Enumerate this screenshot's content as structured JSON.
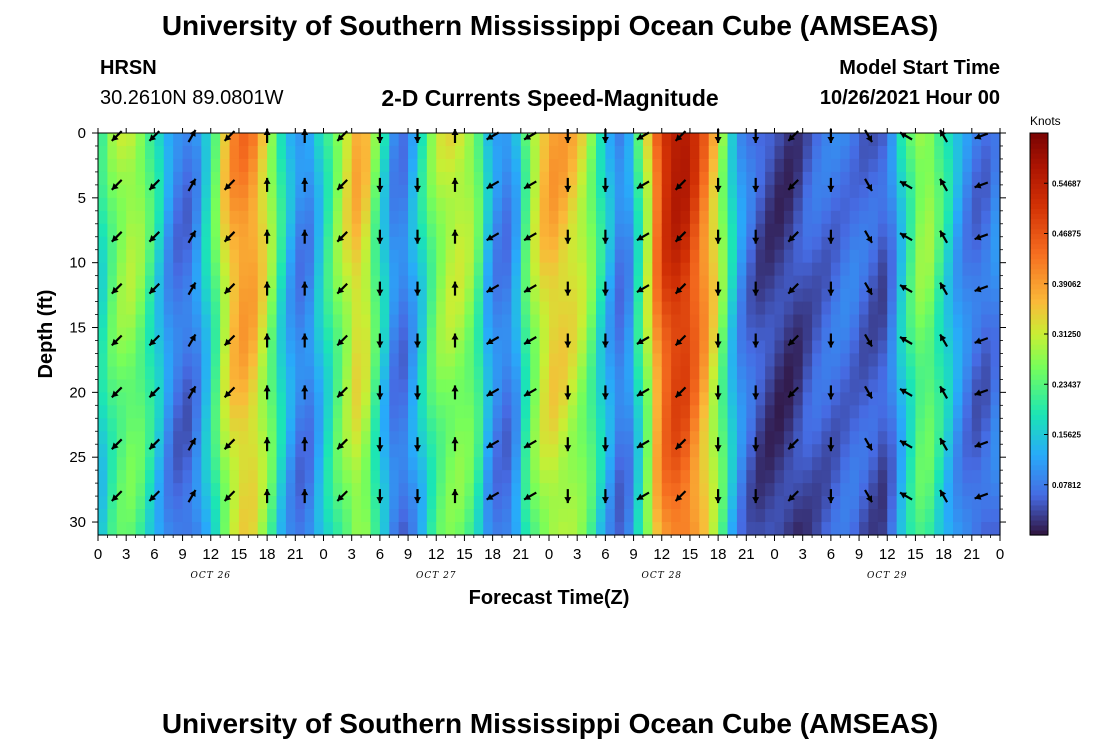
{
  "page": {
    "title_top": "University of Southern Mississippi Ocean Cube (AMSEAS)",
    "title_bottom": "University of Southern Mississippi Ocean Cube (AMSEAS)",
    "station": "HRSN",
    "coords": "30.2610N  89.0801W",
    "plot_title": "2-D Currents Speed-Magnitude",
    "model_start_label": "Model Start Time",
    "model_start_value": "10/26/2021 Hour 00"
  },
  "chart_data": {
    "type": "heatmap",
    "title": "2-D Currents Speed-Magnitude",
    "xlabel": "Forecast Time(Z)",
    "ylabel": "Depth (ft)",
    "x_tick_labels": [
      "0",
      "3",
      "6",
      "9",
      "12",
      "15",
      "18",
      "21",
      "0",
      "3",
      "6",
      "9",
      "12",
      "15",
      "18",
      "21",
      "0",
      "3",
      "6",
      "9",
      "12",
      "15",
      "18",
      "21",
      "0",
      "3",
      "6",
      "9",
      "12",
      "15",
      "18",
      "21",
      "0"
    ],
    "x_range_hours": [
      0,
      96
    ],
    "date_labels": [
      {
        "label": "OCT 26",
        "hour": 12
      },
      {
        "label": "OCT 27",
        "hour": 36
      },
      {
        "label": "OCT 28",
        "hour": 60
      },
      {
        "label": "OCT 29",
        "hour": 84
      }
    ],
    "y_ticks": [
      0,
      5,
      10,
      15,
      20,
      25,
      30
    ],
    "y_range": [
      0,
      31
    ],
    "colorbar": {
      "unit": "Knots",
      "min": 0,
      "max": 0.625,
      "tick_labels": [
        "0.54687",
        "0.46875",
        "0.39062",
        "0.31250",
        "0.23437",
        "0.15625",
        "0.07812"
      ],
      "tick_values": [
        0.54687,
        0.46875,
        0.390625,
        0.3125,
        0.234375,
        0.15625,
        0.078125
      ]
    },
    "speed_knots_by_hour": [
      {
        "hour": 0,
        "speed": 0.17
      },
      {
        "hour": 2,
        "speed": 0.28
      },
      {
        "hour": 4,
        "speed": 0.3
      },
      {
        "hour": 6,
        "speed": 0.2
      },
      {
        "hour": 8,
        "speed": 0.08
      },
      {
        "hour": 10,
        "speed": 0.07
      },
      {
        "hour": 12,
        "speed": 0.2
      },
      {
        "hour": 14,
        "speed": 0.38
      },
      {
        "hour": 16,
        "speed": 0.42
      },
      {
        "hour": 18,
        "speed": 0.32
      },
      {
        "hour": 20,
        "speed": 0.15
      },
      {
        "hour": 22,
        "speed": 0.07
      },
      {
        "hour": 24,
        "speed": 0.18
      },
      {
        "hour": 26,
        "speed": 0.3
      },
      {
        "hour": 28,
        "speed": 0.38
      },
      {
        "hour": 30,
        "speed": 0.2
      },
      {
        "hour": 32,
        "speed": 0.06
      },
      {
        "hour": 34,
        "speed": 0.15
      },
      {
        "hour": 36,
        "speed": 0.28
      },
      {
        "hour": 38,
        "speed": 0.32
      },
      {
        "hour": 40,
        "speed": 0.28
      },
      {
        "hour": 42,
        "speed": 0.1
      },
      {
        "hour": 44,
        "speed": 0.08
      },
      {
        "hour": 46,
        "speed": 0.28
      },
      {
        "hour": 48,
        "speed": 0.38
      },
      {
        "hour": 50,
        "speed": 0.36
      },
      {
        "hour": 52,
        "speed": 0.3
      },
      {
        "hour": 54,
        "speed": 0.16
      },
      {
        "hour": 56,
        "speed": 0.06
      },
      {
        "hour": 58,
        "speed": 0.25
      },
      {
        "hour": 60,
        "speed": 0.5
      },
      {
        "hour": 62,
        "speed": 0.56
      },
      {
        "hour": 64,
        "speed": 0.46
      },
      {
        "hour": 66,
        "speed": 0.32
      },
      {
        "hour": 68,
        "speed": 0.12
      },
      {
        "hour": 70,
        "speed": 0.05
      },
      {
        "hour": 72,
        "speed": 0.03
      },
      {
        "hour": 74,
        "speed": 0.03
      },
      {
        "hour": 76,
        "speed": 0.06
      },
      {
        "hour": 78,
        "speed": 0.07
      },
      {
        "hour": 80,
        "speed": 0.08
      },
      {
        "hour": 82,
        "speed": 0.06
      },
      {
        "hour": 84,
        "speed": 0.05
      },
      {
        "hour": 86,
        "speed": 0.2
      },
      {
        "hour": 88,
        "speed": 0.3
      },
      {
        "hour": 90,
        "speed": 0.2
      },
      {
        "hour": 92,
        "speed": 0.1
      },
      {
        "hour": 94,
        "speed": 0.06
      },
      {
        "hour": 96,
        "speed": 0.1
      }
    ],
    "vector_depths_ft": [
      0,
      4,
      8,
      12,
      16,
      20,
      24,
      28
    ],
    "vector_hours": [
      2,
      6,
      10,
      14,
      18,
      22,
      26,
      30,
      34,
      38,
      42,
      46,
      50,
      54,
      58,
      62,
      66,
      70,
      74,
      78,
      82,
      86,
      90,
      94
    ],
    "vector_direction_deg_by_hour": [
      225,
      225,
      60,
      225,
      90,
      90,
      225,
      270,
      270,
      90,
      210,
      210,
      270,
      270,
      210,
      225,
      270,
      270,
      225,
      270,
      300,
      150,
      120,
      200
    ]
  },
  "colors": {
    "background": "#ffffff",
    "text": "#000000",
    "arrow": "#000000"
  }
}
